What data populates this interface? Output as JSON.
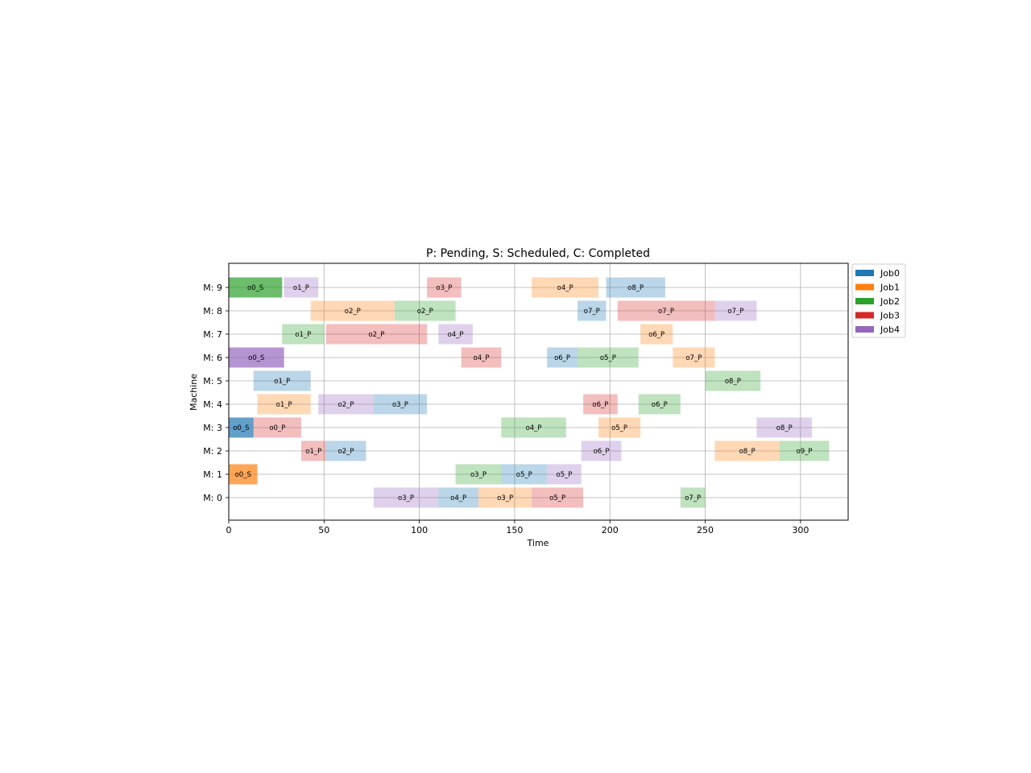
{
  "chart_data": {
    "type": "gantt",
    "title": "P: Pending, S: Scheduled, C: Completed",
    "xlabel": "Time",
    "ylabel": "Machine",
    "xlim": [
      0,
      325
    ],
    "xticks": [
      0,
      50,
      100,
      150,
      200,
      250,
      300
    ],
    "machines": [
      "M: 0",
      "M: 1",
      "M: 2",
      "M: 3",
      "M: 4",
      "M: 5",
      "M: 6",
      "M: 7",
      "M: 8",
      "M: 9"
    ],
    "grid": true,
    "legend_placement": "outside-top-right",
    "jobs": [
      {
        "name": "Job0",
        "color": "#1f77b4"
      },
      {
        "name": "Job1",
        "color": "#ff7f0e"
      },
      {
        "name": "Job2",
        "color": "#2ca02c"
      },
      {
        "name": "Job3",
        "color": "#d62728"
      },
      {
        "name": "Job4",
        "color": "#9467bd"
      }
    ],
    "operations": [
      {
        "machine": 9,
        "job": 2,
        "start": 0,
        "end": 28,
        "label": "o0_S",
        "status": "S"
      },
      {
        "machine": 9,
        "job": 4,
        "start": 29,
        "end": 47,
        "label": "o1_P",
        "status": "P"
      },
      {
        "machine": 9,
        "job": 3,
        "start": 104,
        "end": 122,
        "label": "o3_P",
        "status": "P"
      },
      {
        "machine": 9,
        "job": 1,
        "start": 159,
        "end": 194,
        "label": "o4_P",
        "status": "P"
      },
      {
        "machine": 9,
        "job": 0,
        "start": 198,
        "end": 229,
        "label": "o8_P",
        "status": "P"
      },
      {
        "machine": 8,
        "job": 1,
        "start": 43,
        "end": 87,
        "label": "o2_P",
        "status": "P"
      },
      {
        "machine": 8,
        "job": 2,
        "start": 87,
        "end": 119,
        "label": "o2_P",
        "status": "P"
      },
      {
        "machine": 8,
        "job": 0,
        "start": 183,
        "end": 198,
        "label": "o7_P",
        "status": "P"
      },
      {
        "machine": 8,
        "job": 3,
        "start": 204,
        "end": 255,
        "label": "o7_P",
        "status": "P"
      },
      {
        "machine": 8,
        "job": 4,
        "start": 255,
        "end": 277,
        "label": "o7_P",
        "status": "P"
      },
      {
        "machine": 7,
        "job": 2,
        "start": 28,
        "end": 50,
        "label": "o1_P",
        "status": "P"
      },
      {
        "machine": 7,
        "job": 3,
        "start": 51,
        "end": 104,
        "label": "o2_P",
        "status": "P"
      },
      {
        "machine": 7,
        "job": 4,
        "start": 110,
        "end": 128,
        "label": "o4_P",
        "status": "P"
      },
      {
        "machine": 7,
        "job": 1,
        "start": 216,
        "end": 233,
        "label": "o6_P",
        "status": "P"
      },
      {
        "machine": 6,
        "job": 4,
        "start": 0,
        "end": 29,
        "label": "o0_S",
        "status": "S"
      },
      {
        "machine": 6,
        "job": 3,
        "start": 122,
        "end": 143,
        "label": "o4_P",
        "status": "P"
      },
      {
        "machine": 6,
        "job": 0,
        "start": 167,
        "end": 183,
        "label": "o6_P",
        "status": "P"
      },
      {
        "machine": 6,
        "job": 2,
        "start": 183,
        "end": 215,
        "label": "o5_P",
        "status": "P"
      },
      {
        "machine": 6,
        "job": 1,
        "start": 233,
        "end": 255,
        "label": "o7_P",
        "status": "P"
      },
      {
        "machine": 5,
        "job": 0,
        "start": 13,
        "end": 43,
        "label": "o1_P",
        "status": "P"
      },
      {
        "machine": 5,
        "job": 2,
        "start": 250,
        "end": 279,
        "label": "o8_P",
        "status": "P"
      },
      {
        "machine": 4,
        "job": 1,
        "start": 15,
        "end": 43,
        "label": "o1_P",
        "status": "P"
      },
      {
        "machine": 4,
        "job": 4,
        "start": 47,
        "end": 76,
        "label": "o2_P",
        "status": "P"
      },
      {
        "machine": 4,
        "job": 0,
        "start": 76,
        "end": 104,
        "label": "o3_P",
        "status": "P"
      },
      {
        "machine": 4,
        "job": 3,
        "start": 186,
        "end": 204,
        "label": "o6_P",
        "status": "P"
      },
      {
        "machine": 4,
        "job": 2,
        "start": 215,
        "end": 237,
        "label": "o6_P",
        "status": "P"
      },
      {
        "machine": 3,
        "job": 0,
        "start": 0,
        "end": 13,
        "label": "o0_S",
        "status": "S"
      },
      {
        "machine": 3,
        "job": 3,
        "start": 13,
        "end": 38,
        "label": "o0_P",
        "status": "P"
      },
      {
        "machine": 3,
        "job": 2,
        "start": 143,
        "end": 177,
        "label": "o4_P",
        "status": "P"
      },
      {
        "machine": 3,
        "job": 1,
        "start": 194,
        "end": 216,
        "label": "o5_P",
        "status": "P"
      },
      {
        "machine": 3,
        "job": 4,
        "start": 277,
        "end": 306,
        "label": "o8_P",
        "status": "P"
      },
      {
        "machine": 2,
        "job": 3,
        "start": 38,
        "end": 51,
        "label": "o1_P",
        "status": "P"
      },
      {
        "machine": 2,
        "job": 0,
        "start": 51,
        "end": 72,
        "label": "o2_P",
        "status": "P"
      },
      {
        "machine": 2,
        "job": 4,
        "start": 185,
        "end": 206,
        "label": "o6_P",
        "status": "P"
      },
      {
        "machine": 2,
        "job": 1,
        "start": 255,
        "end": 289,
        "label": "o8_P",
        "status": "P"
      },
      {
        "machine": 2,
        "job": 2,
        "start": 289,
        "end": 315,
        "label": "o9_P",
        "status": "P"
      },
      {
        "machine": 1,
        "job": 1,
        "start": 0,
        "end": 15,
        "label": "o0_S",
        "status": "S"
      },
      {
        "machine": 1,
        "job": 2,
        "start": 119,
        "end": 143,
        "label": "o3_P",
        "status": "P"
      },
      {
        "machine": 1,
        "job": 0,
        "start": 143,
        "end": 167,
        "label": "o5_P",
        "status": "P"
      },
      {
        "machine": 1,
        "job": 4,
        "start": 167,
        "end": 185,
        "label": "o5_P",
        "status": "P"
      },
      {
        "machine": 0,
        "job": 4,
        "start": 76,
        "end": 110,
        "label": "o3_P",
        "status": "P"
      },
      {
        "machine": 0,
        "job": 0,
        "start": 110,
        "end": 131,
        "label": "o4_P",
        "status": "P"
      },
      {
        "machine": 0,
        "job": 1,
        "start": 131,
        "end": 159,
        "label": "o3_P",
        "status": "P"
      },
      {
        "machine": 0,
        "job": 3,
        "start": 159,
        "end": 186,
        "label": "o5_P",
        "status": "P"
      },
      {
        "machine": 0,
        "job": 2,
        "start": 237,
        "end": 250,
        "label": "o7_P",
        "status": "P"
      }
    ]
  }
}
